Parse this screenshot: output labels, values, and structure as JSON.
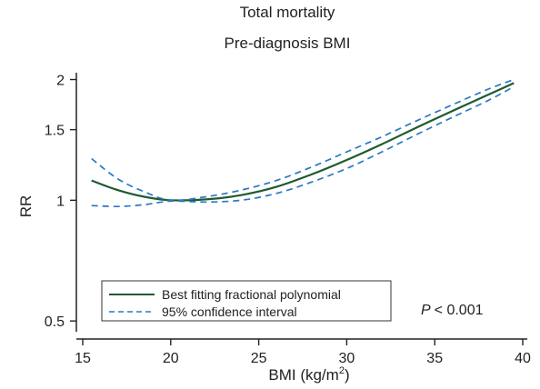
{
  "chart_data": {
    "type": "line",
    "title": "Total mortality",
    "subtitle": "Pre-diagnosis BMI",
    "xlabel": "BMI (kg/m",
    "xlabel_superscript": "2",
    "xlabel_suffix": ")",
    "ylabel": "RR",
    "ylog": true,
    "xlim": [
      15,
      40
    ],
    "ylim": [
      0.47,
      2.08
    ],
    "xticks": [
      15,
      20,
      25,
      30,
      35,
      40
    ],
    "yticks": [
      0.5,
      1,
      1.5,
      2
    ],
    "xtick_labels": [
      "15",
      "20",
      "25",
      "30",
      "35",
      "40"
    ],
    "ytick_labels": [
      "0.5",
      "1",
      "1.5",
      "2"
    ],
    "annotation": {
      "text": "< 0.001",
      "italic_prefix": "P"
    },
    "legend_position": "bottom-left",
    "grid": false,
    "series": [
      {
        "name": "Best fitting fractional polynomial",
        "style": "solid",
        "color": "#1f5a2e",
        "x": [
          15.5,
          17,
          18.5,
          20,
          22,
          24,
          26,
          28,
          30,
          32,
          34,
          36,
          38,
          39.5
        ],
        "y": [
          1.12,
          1.06,
          1.02,
          1.0,
          1.005,
          1.03,
          1.08,
          1.16,
          1.26,
          1.38,
          1.52,
          1.67,
          1.83,
          1.96
        ]
      },
      {
        "name": "95% confidence interval",
        "style": "dashed",
        "color": "#2a78c0",
        "x": [
          15.5,
          17,
          18.5,
          20,
          22,
          24,
          26,
          28,
          30,
          32,
          34,
          36,
          38,
          39.5
        ],
        "y": [
          1.27,
          1.13,
          1.05,
          1.0,
          1.02,
          1.06,
          1.12,
          1.21,
          1.32,
          1.44,
          1.58,
          1.73,
          1.89,
          2.0
        ]
      },
      {
        "style": "dashed",
        "color": "#2a78c0",
        "x": [
          15.5,
          17,
          18.5,
          20,
          22,
          24,
          26,
          28,
          30,
          32,
          34,
          36,
          38,
          39.5
        ],
        "y": [
          0.97,
          0.965,
          0.975,
          0.995,
          0.99,
          1.0,
          1.04,
          1.11,
          1.2,
          1.32,
          1.46,
          1.61,
          1.77,
          1.92
        ]
      }
    ]
  }
}
